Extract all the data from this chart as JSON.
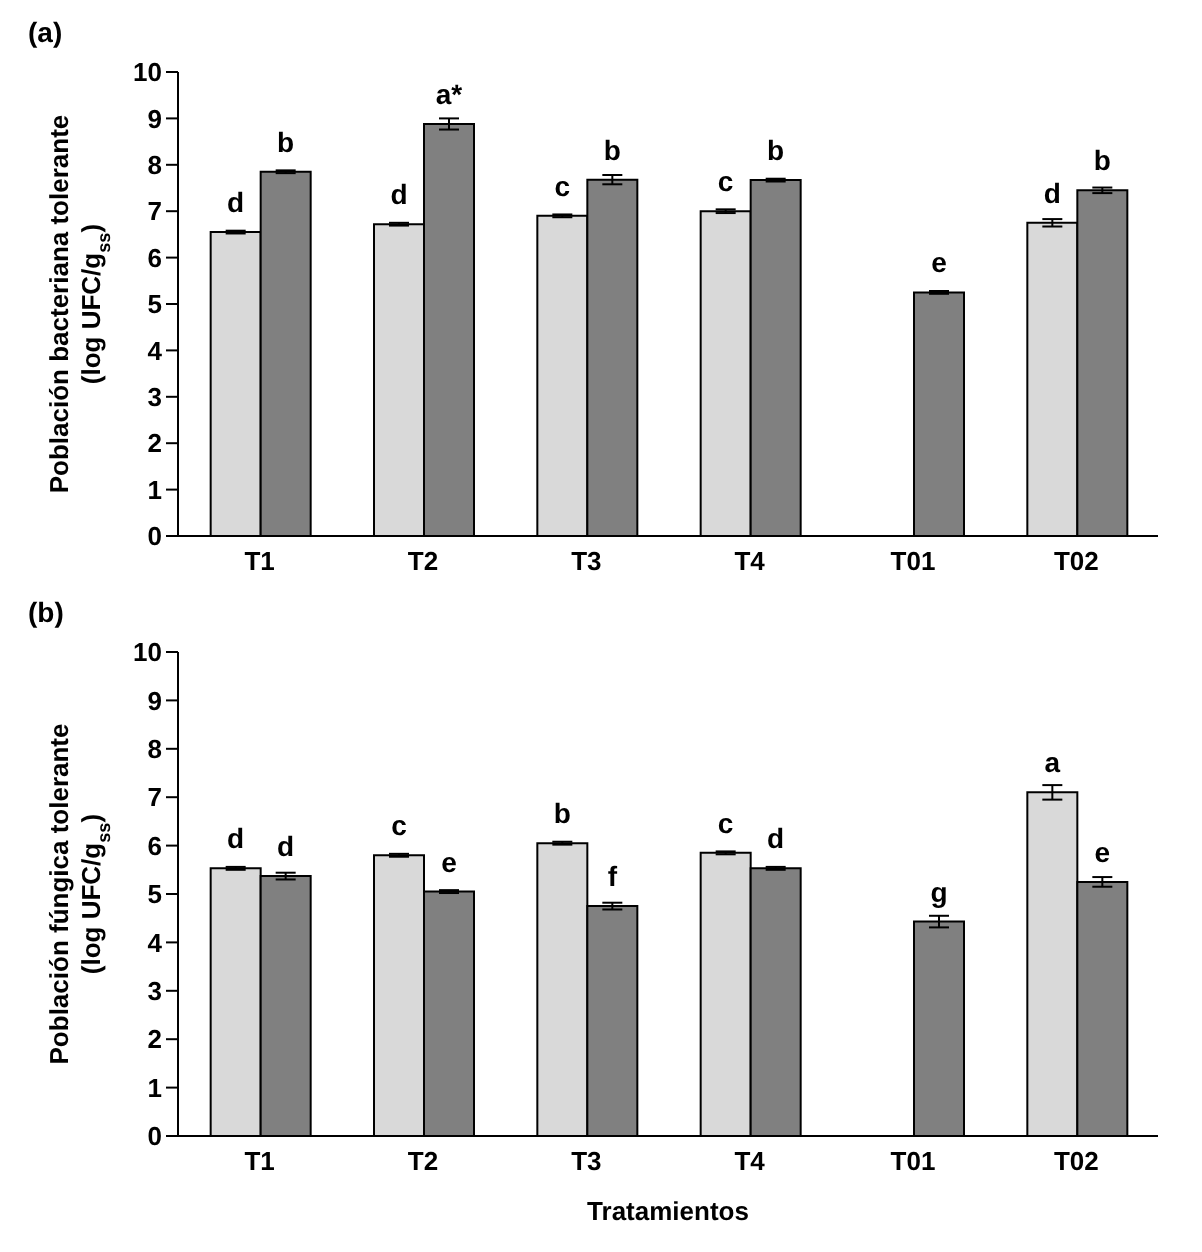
{
  "chart_data": [
    {
      "type": "bar",
      "title": "(a)",
      "ylabel": "Población bacteriana tolerante\n(log UFC/g$_{ss}$)",
      "categories": [
        "T1",
        "T2",
        "T3",
        "T4",
        "T01",
        "T02"
      ],
      "series": [
        {
          "color": "#d9d9d9",
          "values": [
            6.55,
            6.72,
            6.9,
            7.0,
            null,
            6.75
          ],
          "errors": [
            0.03,
            0.03,
            0.03,
            0.04,
            null,
            0.08
          ],
          "value_labels": [
            "d",
            "d",
            "c",
            "c",
            null,
            "d"
          ]
        },
        {
          "color": "#808080",
          "values": [
            7.85,
            8.88,
            7.68,
            7.67,
            5.25,
            7.45
          ],
          "errors": [
            0.03,
            0.12,
            0.1,
            0.03,
            0.03,
            0.06
          ],
          "value_labels": [
            "b",
            "a*",
            "b",
            "b",
            "e",
            "b"
          ]
        }
      ],
      "ylim": [
        0,
        10
      ],
      "yticks": [
        0,
        1,
        2,
        3,
        4,
        5,
        6,
        7,
        8,
        9,
        10
      ],
      "grid": false,
      "legend": false
    },
    {
      "type": "bar",
      "title": "(b)",
      "ylabel": "Población fúngica tolerante\n(log UFC/g$_{ss}$)",
      "xlabel": "Tratamientos",
      "categories": [
        "T1",
        "T2",
        "T3",
        "T4",
        "T01",
        "T02"
      ],
      "series": [
        {
          "color": "#d9d9d9",
          "values": [
            5.53,
            5.8,
            6.05,
            5.85,
            null,
            7.1
          ],
          "errors": [
            0.03,
            0.03,
            0.03,
            0.03,
            null,
            0.15
          ],
          "value_labels": [
            "d",
            "c",
            "b",
            "c",
            null,
            "a"
          ]
        },
        {
          "color": "#808080",
          "values": [
            5.37,
            5.05,
            4.75,
            5.53,
            4.43,
            5.25
          ],
          "errors": [
            0.07,
            0.03,
            0.07,
            0.03,
            0.12,
            0.1
          ],
          "value_labels": [
            "d",
            "e",
            "f",
            "d",
            "g",
            "e"
          ]
        }
      ],
      "ylim": [
        0,
        10
      ],
      "yticks": [
        0,
        1,
        2,
        3,
        4,
        5,
        6,
        7,
        8,
        9,
        10
      ],
      "grid": false,
      "legend": false
    }
  ]
}
